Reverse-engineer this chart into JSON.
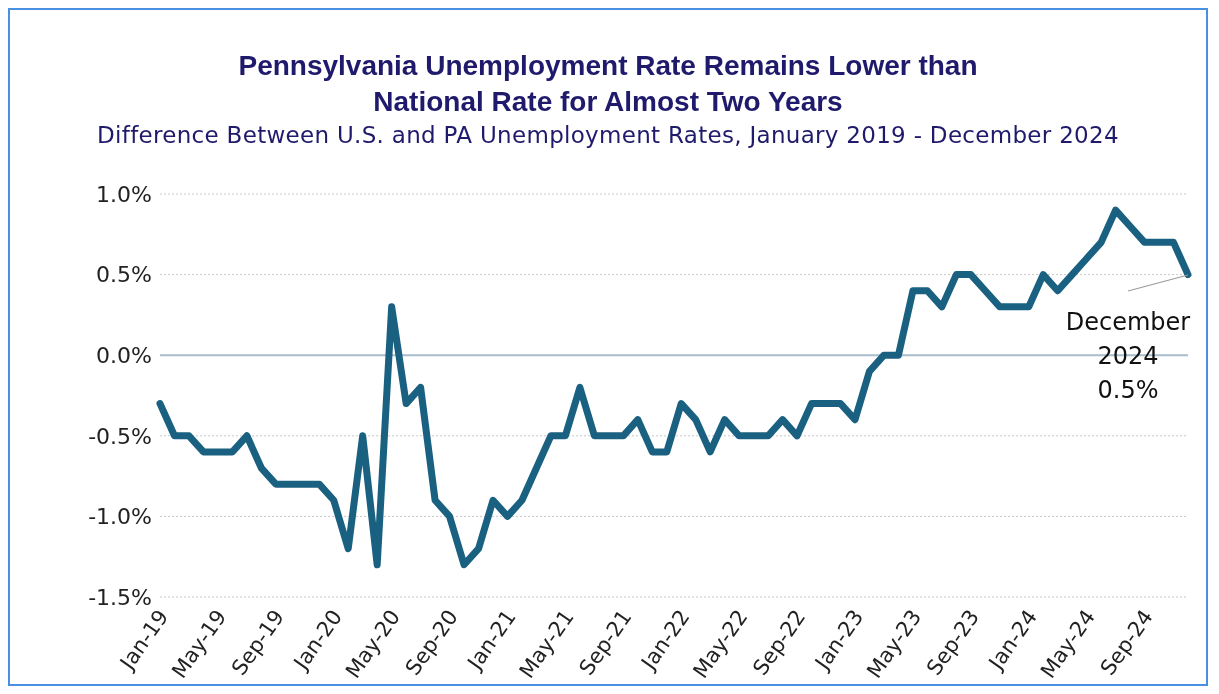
{
  "chart_data": {
    "type": "line",
    "title": "Pennsylvania Unemployment Rate Remains Lower than\nNational Rate for Almost Two Years",
    "subtitle": "Difference Between U.S. and PA Unemployment Rates, January 2019 - December 2024",
    "categories": [
      "Jan-19",
      null,
      null,
      null,
      "May-19",
      null,
      null,
      null,
      "Sep-19",
      null,
      null,
      null,
      "Jan-20",
      null,
      null,
      null,
      "May-20",
      null,
      null,
      null,
      "Sep-20",
      null,
      null,
      null,
      "Jan-21",
      null,
      null,
      null,
      "May-21",
      null,
      null,
      null,
      "Sep-21",
      null,
      null,
      null,
      "Jan-22",
      null,
      null,
      null,
      "May-22",
      null,
      null,
      null,
      "Sep-22",
      null,
      null,
      null,
      "Jan-23",
      null,
      null,
      null,
      "May-23",
      null,
      null,
      null,
      "Sep-23",
      null,
      null,
      null,
      "Jan-24",
      null,
      null,
      null,
      "May-24",
      null,
      null,
      null,
      "Sep-24",
      null,
      null,
      null
    ],
    "series": [
      {
        "color": "#1a6080",
        "values": [
          -0.3,
          -0.5,
          -0.5,
          -0.6,
          -0.6,
          -0.6,
          -0.5,
          -0.7,
          -0.8,
          -0.8,
          -0.8,
          -0.8,
          -0.9,
          -1.2,
          -0.5,
          -1.3,
          0.3,
          -0.3,
          -0.2,
          -0.9,
          -1.0,
          -1.3,
          -1.2,
          -0.9,
          -1.0,
          -0.9,
          -0.7,
          -0.5,
          -0.5,
          -0.2,
          -0.5,
          -0.5,
          -0.5,
          -0.4,
          -0.6,
          -0.6,
          -0.3,
          -0.4,
          -0.6,
          -0.4,
          -0.5,
          -0.5,
          -0.5,
          -0.4,
          -0.5,
          -0.3,
          -0.3,
          -0.3,
          -0.4,
          -0.1,
          0.0,
          0.0,
          0.4,
          0.4,
          0.3,
          0.5,
          0.5,
          0.4,
          0.3,
          0.3,
          0.3,
          0.5,
          0.4,
          0.5,
          0.6,
          0.7,
          0.9,
          0.8,
          0.7,
          0.7,
          0.7,
          0.5
        ]
      }
    ],
    "ylim": [
      -1.5,
      1.0
    ],
    "yticks": [
      {
        "value": -1.5,
        "label": "-1.5%"
      },
      {
        "value": -1.0,
        "label": "-1.0%"
      },
      {
        "value": -0.5,
        "label": "-0.5%"
      },
      {
        "value": 0.0,
        "label": "0.0%"
      },
      {
        "value": 0.5,
        "label": "0.5%"
      },
      {
        "value": 1.0,
        "label": "1.0%"
      }
    ],
    "ref_lines": [
      {
        "axis": "y",
        "value": 0,
        "color": "#a9bfcc"
      }
    ],
    "annotations": [
      "December\n2024\n0.5%"
    ],
    "grid": "y",
    "marker": "none",
    "line_style": "solid"
  }
}
